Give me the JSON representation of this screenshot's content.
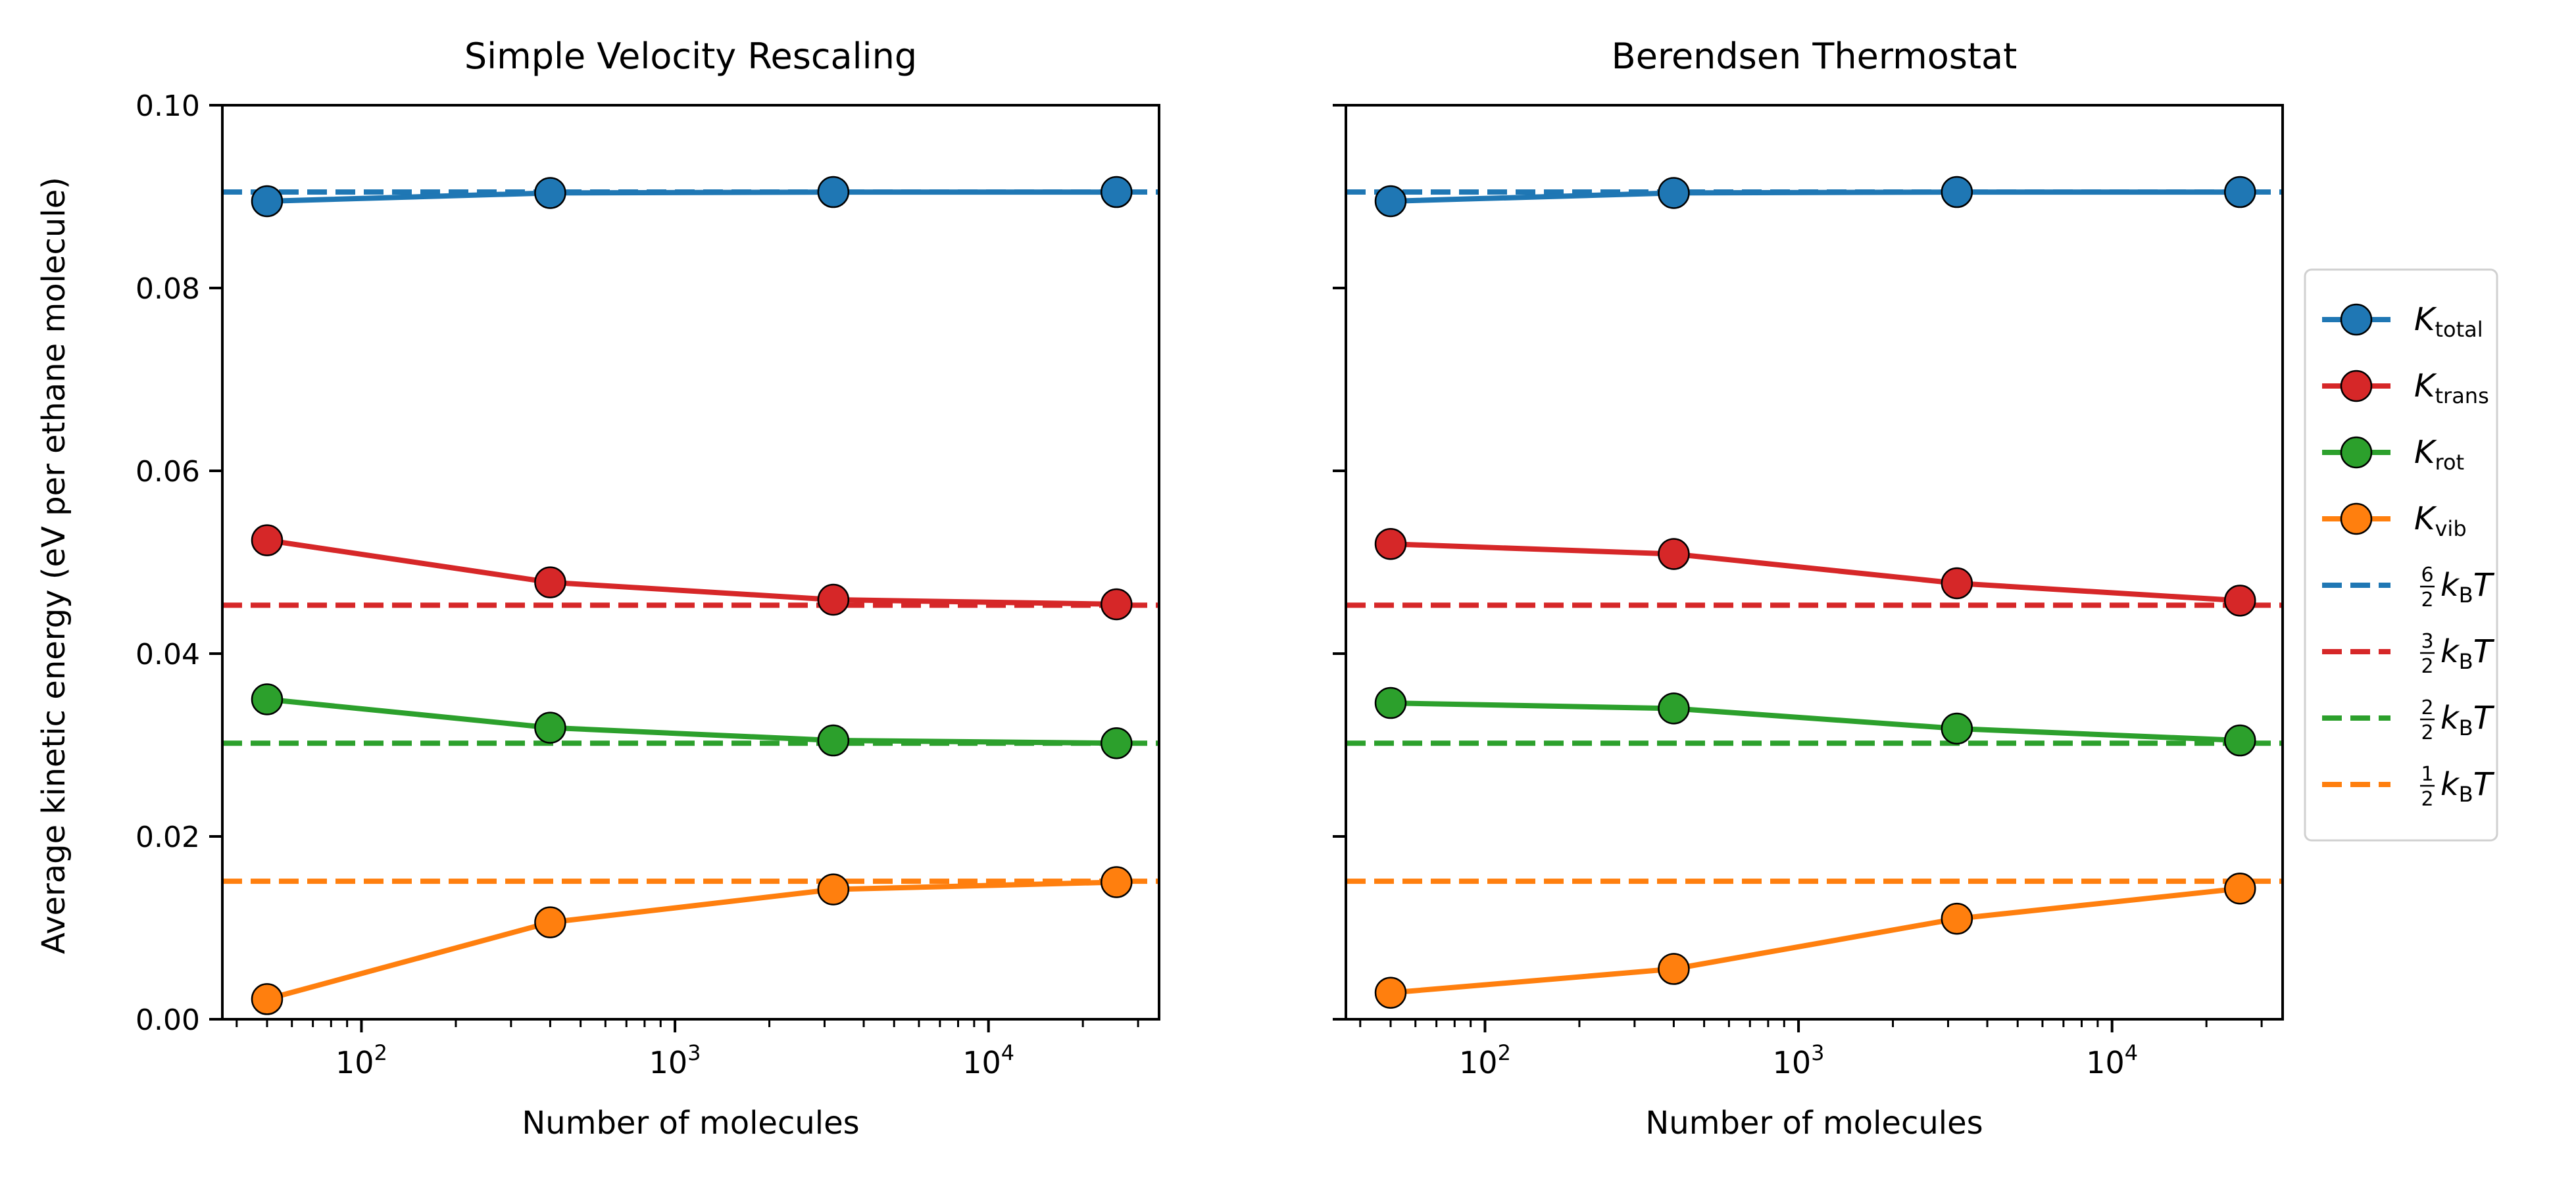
{
  "ylabel": "Average kinetic energy (eV per ethane molecule)",
  "xlabel": "Number of molecules",
  "colors": {
    "blue": "#1f77b4",
    "red": "#d62728",
    "green": "#2ca02c",
    "orange": "#ff7f0e"
  },
  "legend": [
    {
      "base": "K",
      "sub": "total",
      "style": "line-marker",
      "color": "#1f77b4"
    },
    {
      "base": "K",
      "sub": "trans",
      "style": "line-marker",
      "color": "#d62728"
    },
    {
      "base": "K",
      "sub": "rot",
      "style": "line-marker",
      "color": "#2ca02c"
    },
    {
      "base": "K",
      "sub": "vib",
      "style": "line-marker",
      "color": "#ff7f0e"
    },
    {
      "num": "6",
      "den": "2",
      "base": "k",
      "sub": "B",
      "tail": "T",
      "style": "dashed",
      "color": "#1f77b4"
    },
    {
      "num": "3",
      "den": "2",
      "base": "k",
      "sub": "B",
      "tail": "T",
      "style": "dashed",
      "color": "#d62728"
    },
    {
      "num": "2",
      "den": "2",
      "base": "k",
      "sub": "B",
      "tail": "T",
      "style": "dashed",
      "color": "#2ca02c"
    },
    {
      "num": "1",
      "den": "2",
      "base": "k",
      "sub": "B",
      "tail": "T",
      "style": "dashed",
      "color": "#ff7f0e"
    }
  ],
  "chart_data": [
    {
      "type": "line",
      "title": "Simple Velocity Rescaling",
      "xlabel": "Number of molecules",
      "ylabel": "Average kinetic energy (eV per ethane molecule)",
      "xscale": "log",
      "xlim": [
        36,
        35000
      ],
      "ylim": [
        0.0,
        0.1
      ],
      "yticks": [
        "0.00",
        "0.02",
        "0.04",
        "0.06",
        "0.08",
        "0.10"
      ],
      "xticks": [
        {
          "base": "10",
          "exp": "2"
        },
        {
          "base": "10",
          "exp": "3"
        },
        {
          "base": "10",
          "exp": "4"
        }
      ],
      "x": [
        50,
        400,
        3200,
        25600
      ],
      "series": [
        {
          "name": "K_total",
          "color": "#1f77b4",
          "values": [
            0.0895,
            0.0904,
            0.0905,
            0.0905
          ]
        },
        {
          "name": "K_trans",
          "color": "#d62728",
          "values": [
            0.0524,
            0.0478,
            0.0459,
            0.0454
          ]
        },
        {
          "name": "K_rot",
          "color": "#2ca02c",
          "values": [
            0.035,
            0.0319,
            0.0305,
            0.0302
          ]
        },
        {
          "name": "K_vib",
          "color": "#ff7f0e",
          "values": [
            0.0022,
            0.0106,
            0.0142,
            0.015
          ]
        }
      ],
      "reference_lines": [
        {
          "name": "6/2 kB T",
          "color": "#1f77b4",
          "y": 0.0905
        },
        {
          "name": "3/2 kB T",
          "color": "#d62728",
          "y": 0.0453
        },
        {
          "name": "2/2 kB T",
          "color": "#2ca02c",
          "y": 0.0302
        },
        {
          "name": "1/2 kB T",
          "color": "#ff7f0e",
          "y": 0.0151
        }
      ]
    },
    {
      "type": "line",
      "title": "Berendsen Thermostat",
      "xlabel": "Number of molecules",
      "ylabel": "",
      "xscale": "log",
      "xlim": [
        36,
        35000
      ],
      "ylim": [
        0.0,
        0.1
      ],
      "yticks": [],
      "xticks": [
        {
          "base": "10",
          "exp": "2"
        },
        {
          "base": "10",
          "exp": "3"
        },
        {
          "base": "10",
          "exp": "4"
        }
      ],
      "x": [
        50,
        400,
        3200,
        25600
      ],
      "series": [
        {
          "name": "K_total",
          "color": "#1f77b4",
          "values": [
            0.0895,
            0.0904,
            0.0905,
            0.0905
          ]
        },
        {
          "name": "K_trans",
          "color": "#d62728",
          "values": [
            0.052,
            0.0509,
            0.0477,
            0.0458
          ]
        },
        {
          "name": "K_rot",
          "color": "#2ca02c",
          "values": [
            0.0346,
            0.034,
            0.0318,
            0.0305
          ]
        },
        {
          "name": "K_vib",
          "color": "#ff7f0e",
          "values": [
            0.0029,
            0.0055,
            0.011,
            0.0143
          ]
        }
      ],
      "reference_lines": [
        {
          "name": "6/2 kB T",
          "color": "#1f77b4",
          "y": 0.0905
        },
        {
          "name": "3/2 kB T",
          "color": "#d62728",
          "y": 0.0453
        },
        {
          "name": "2/2 kB T",
          "color": "#2ca02c",
          "y": 0.0302
        },
        {
          "name": "1/2 kB T",
          "color": "#ff7f0e",
          "y": 0.0151
        }
      ]
    }
  ]
}
